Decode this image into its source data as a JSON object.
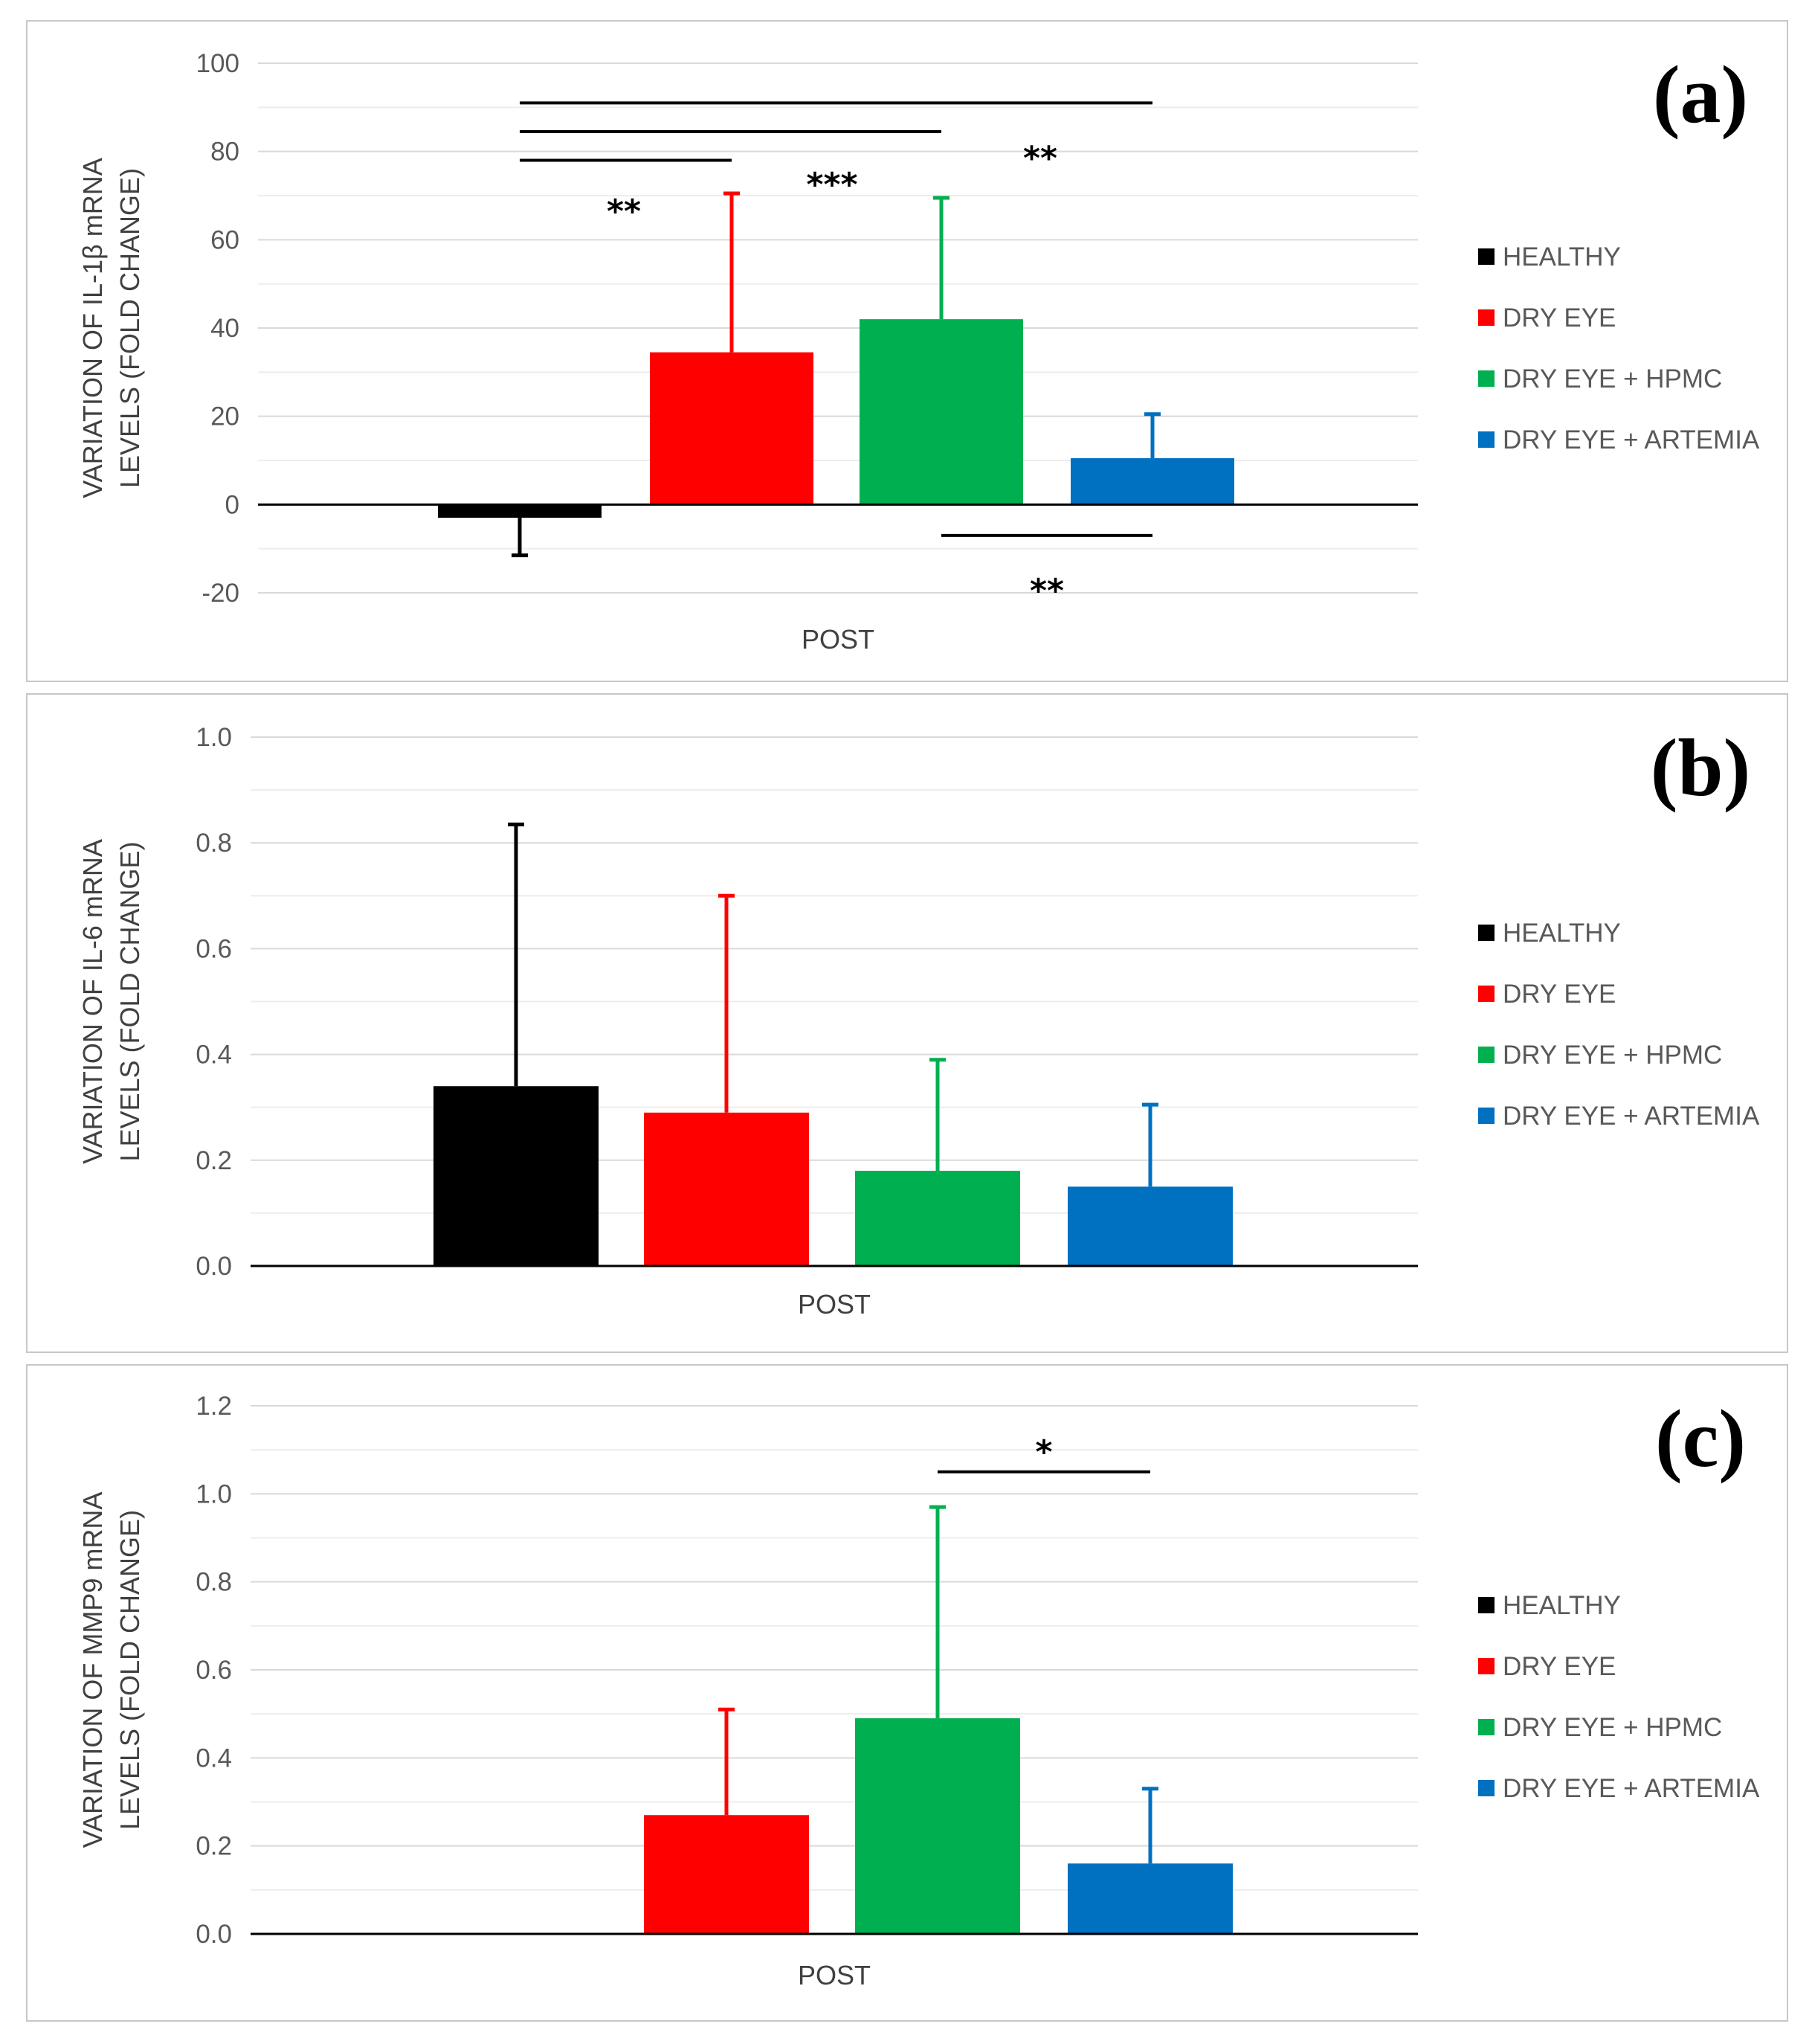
{
  "chart_data": [
    {
      "id": "a",
      "type": "bar",
      "panel_label": "(a)",
      "ylabel_line1": "VARIATION OF IL-1β mRNA",
      "ylabel_line2": "LEVELS (FOLD CHANGE)",
      "xlabel": "POST",
      "ylim": [
        -20,
        100
      ],
      "yticks": [
        -20,
        0,
        20,
        40,
        60,
        80,
        100
      ],
      "tick_decimals": 0,
      "minor_grid": true,
      "legend": [
        "HEALTHY",
        "DRY EYE",
        "DRY EYE + HPMC",
        "DRY EYE + ARTEMIA"
      ],
      "colors": [
        "#000000",
        "#ff0000",
        "#00b050",
        "#0070c0"
      ],
      "values": [
        -3,
        34.5,
        42,
        10.5
      ],
      "errors": [
        8.5,
        36,
        27.5,
        10
      ],
      "significance": [
        {
          "from": 0,
          "to": 1,
          "y": 78,
          "label": "**",
          "label_y": 67
        },
        {
          "from": 0,
          "to": 2,
          "y": 84.5,
          "label": "***",
          "label_y": 73
        },
        {
          "from": 0,
          "to": 3,
          "y": 91,
          "label": "**",
          "label_y": 79
        },
        {
          "from": 2,
          "to": 3,
          "y": -7,
          "label": "**",
          "label_y": -19
        }
      ]
    },
    {
      "id": "b",
      "type": "bar",
      "panel_label": "(b)",
      "ylabel_line1": "VARIATION OF IL-6 mRNA",
      "ylabel_line2": "LEVELS (FOLD CHANGE)",
      "xlabel": "POST",
      "ylim": [
        0,
        1.0
      ],
      "yticks": [
        0.0,
        0.2,
        0.4,
        0.6,
        0.8,
        1.0
      ],
      "tick_decimals": 1,
      "minor_grid": true,
      "legend": [
        "HEALTHY",
        "DRY EYE",
        "DRY EYE + HPMC",
        "DRY EYE + ARTEMIA"
      ],
      "colors": [
        "#000000",
        "#ff0000",
        "#00b050",
        "#0070c0"
      ],
      "values": [
        0.34,
        0.29,
        0.18,
        0.15
      ],
      "errors": [
        0.495,
        0.41,
        0.21,
        0.155
      ],
      "significance": []
    },
    {
      "id": "c",
      "type": "bar",
      "panel_label": "(c)",
      "ylabel_line1": "VARIATION OF MMP9 mRNA",
      "ylabel_line2": "LEVELS (FOLD CHANGE)",
      "xlabel": "POST",
      "ylim": [
        0,
        1.2
      ],
      "yticks": [
        0.0,
        0.2,
        0.4,
        0.6,
        0.8,
        1.0,
        1.2
      ],
      "tick_decimals": 1,
      "minor_grid": true,
      "legend": [
        "HEALTHY",
        "DRY EYE",
        "DRY EYE + HPMC",
        "DRY EYE + ARTEMIA"
      ],
      "colors": [
        "#000000",
        "#ff0000",
        "#00b050",
        "#0070c0"
      ],
      "values": [
        0,
        0.27,
        0.49,
        0.16
      ],
      "errors": [
        0,
        0.24,
        0.48,
        0.17
      ],
      "significance": [
        {
          "from": 2,
          "to": 3,
          "y": 1.05,
          "label": "*",
          "label_y": 1.1
        }
      ]
    }
  ]
}
